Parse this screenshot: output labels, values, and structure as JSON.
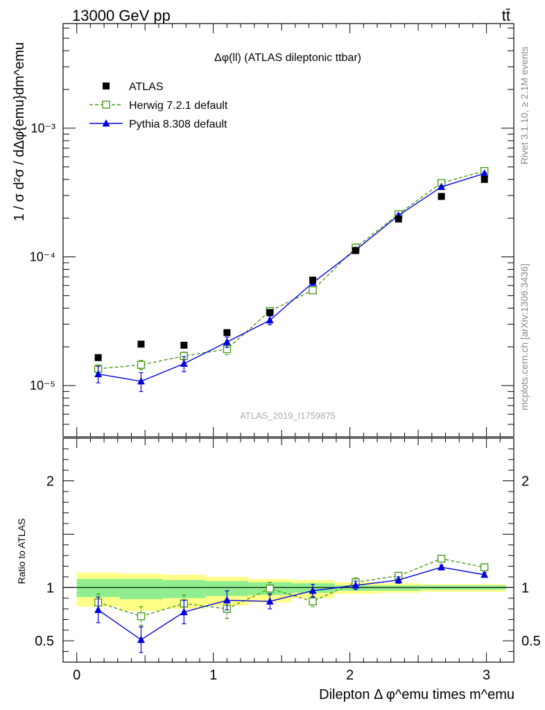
{
  "header": {
    "process": "13000 GeV pp",
    "channel": "tt̄"
  },
  "side_labels": {
    "rivet": "Rivet 3.1.10, ≥ 2.1M events",
    "mcplots": "mcplots.cern.ch [arXiv:1306.3436]"
  },
  "chart_data": [
    {
      "type": "scatter",
      "panel": "main",
      "title": "Δφ(ll) (ATLAS dileptonic ttbar)",
      "ylabel": "1 / σ  d²σ / dΔφ{emu}dm^emu",
      "watermark": "ATLAS_2019_I1759875",
      "y_scale": "log",
      "xlim": [
        -0.1,
        3.2
      ],
      "ylim": [
        4e-06,
        0.0065
      ],
      "y_ticks": [
        "10⁻⁵",
        "10⁻⁴",
        "10⁻³"
      ],
      "legend_position": "top-left",
      "x": [
        0.157,
        0.471,
        0.785,
        1.1,
        1.414,
        1.728,
        2.042,
        2.356,
        2.67,
        2.985
      ],
      "series": [
        {
          "name": "ATLAS",
          "style": "black filled squares",
          "color": "#000000",
          "values": [
            1.65e-05,
            2.1e-05,
            2.06e-05,
            2.58e-05,
            3.7e-05,
            6.6e-05,
            0.000112,
            0.000197,
            0.000295,
            0.0004
          ]
        },
        {
          "name": "Herwig 7.2.1 default",
          "style": "green dashed line, open squares",
          "color": "#4a9a1a",
          "values": [
            1.35e-05,
            1.45e-05,
            1.7e-05,
            1.92e-05,
            3.8e-05,
            5.5e-05,
            0.000118,
            0.000215,
            0.000375,
            0.000465
          ],
          "errors": [
            1e-06,
            1.2e-06,
            1.2e-06,
            1.8e-06,
            2e-06,
            3e-06,
            4e-06,
            6e-06,
            8e-06,
            1e-05
          ]
        },
        {
          "name": "Pythia 8.308 default",
          "style": "blue solid line, filled triangles",
          "color": "#0000dd",
          "values": [
            1.23e-05,
            1.08e-05,
            1.48e-05,
            2.18e-05,
            3.22e-05,
            6.3e-05,
            0.000113,
            0.00021,
            0.00035,
            0.000445
          ],
          "errors": [
            1.8e-06,
            1.8e-06,
            2e-06,
            2e-06,
            2.5e-06,
            3e-06,
            4e-06,
            6e-06,
            8e-06,
            1e-05
          ]
        }
      ]
    },
    {
      "type": "scatter",
      "panel": "ratio",
      "ylabel": "Ratio to ATLAS",
      "xlabel": "Dilepton Δ φ^emu times m^emu",
      "xlim": [
        -0.1,
        3.2
      ],
      "ylim": [
        0.3,
        2.4
      ],
      "x_ticks": [
        "0",
        "1",
        "2",
        "3"
      ],
      "y_ticks": [
        "0.5",
        "1",
        "2"
      ],
      "reference_line": 1,
      "band_edges": [
        0,
        0.314,
        0.628,
        0.942,
        1.257,
        1.571,
        1.885,
        2.199,
        2.513,
        2.827,
        3.142
      ],
      "band_outer": [
        [
          0.82,
          1.14
        ],
        [
          0.78,
          1.13
        ],
        [
          0.8,
          1.12
        ],
        [
          0.83,
          1.1
        ],
        [
          0.86,
          1.08
        ],
        [
          0.9,
          1.07
        ],
        [
          0.94,
          1.05
        ],
        [
          0.95,
          1.04
        ],
        [
          0.96,
          1.03
        ],
        [
          0.96,
          1.03
        ]
      ],
      "band_inner": [
        [
          0.91,
          1.08
        ],
        [
          0.89,
          1.08
        ],
        [
          0.9,
          1.07
        ],
        [
          0.92,
          1.06
        ],
        [
          0.93,
          1.05
        ],
        [
          0.95,
          1.04
        ],
        [
          0.97,
          1.02
        ],
        [
          0.97,
          1.02
        ],
        [
          0.98,
          1.02
        ],
        [
          0.98,
          1.02
        ]
      ],
      "band_colors": {
        "outer": "#ffff88",
        "inner": "#90ee90"
      },
      "x": [
        0.157,
        0.471,
        0.785,
        1.1,
        1.414,
        1.728,
        2.042,
        2.356,
        2.67,
        2.985
      ],
      "series": [
        {
          "name": "Herwig 7.2.1 default",
          "color": "#4a9a1a",
          "values": [
            0.86,
            0.73,
            0.85,
            0.8,
            0.99,
            0.87,
            1.05,
            1.11,
            1.27,
            1.19
          ],
          "errors": [
            0.08,
            0.09,
            0.08,
            0.09,
            0.06,
            0.05,
            0.04,
            0.03,
            0.03,
            0.02
          ]
        },
        {
          "name": "Pythia 8.308 default",
          "color": "#0000dd",
          "values": [
            0.79,
            0.51,
            0.77,
            0.88,
            0.87,
            0.97,
            1.02,
            1.07,
            1.19,
            1.12
          ],
          "errors": [
            0.12,
            0.12,
            0.11,
            0.09,
            0.07,
            0.06,
            0.04,
            0.03,
            0.02,
            0.02
          ]
        }
      ]
    }
  ]
}
